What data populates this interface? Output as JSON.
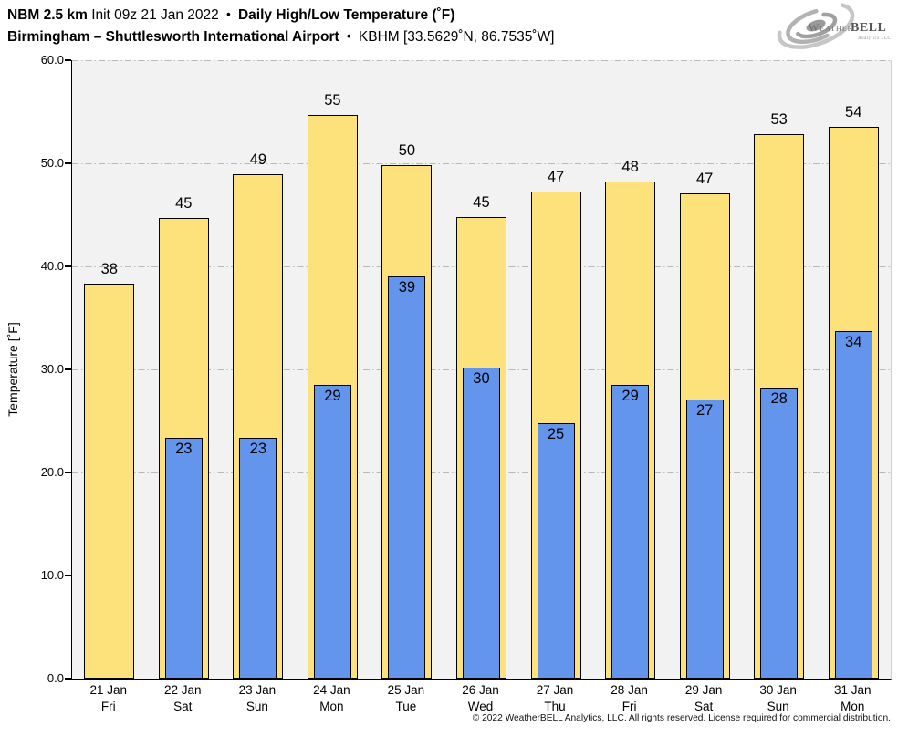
{
  "header": {
    "line1": {
      "model": "NBM 2.5 km",
      "init": "Init 09z 21 Jan 2022",
      "sep": "•",
      "product": "Daily High/Low Temperature (˚F)"
    },
    "line2": {
      "station": "Birmingham – Shuttlesworth International Airport",
      "sep": "•",
      "station_id": "KBHM [33.5629˚N, 86.7535˚W]"
    }
  },
  "logo": {
    "weather": "Weather",
    "bell": "BELL",
    "subtext": "Analytics LLC"
  },
  "footer": {
    "copyright": "© 2022 WeatherBELL Analytics, LLC. All rights reserved. License required for commercial distribution."
  },
  "chart_data": {
    "type": "bar",
    "title": "Daily High/Low Temperature (˚F)",
    "ylabel": "Temperature [˚F]",
    "ylim": [
      0,
      60
    ],
    "yticks": [
      0,
      10,
      20,
      30,
      40,
      50,
      60
    ],
    "ytick_labels": [
      "0.0",
      "10.0",
      "20.0",
      "30.0",
      "40.0",
      "50.0",
      "60.0"
    ],
    "grid": "horizontal dash-dot",
    "legend": "none",
    "categories": [
      {
        "date": "21 Jan",
        "day": "Fri"
      },
      {
        "date": "22 Jan",
        "day": "Sat"
      },
      {
        "date": "23 Jan",
        "day": "Sun"
      },
      {
        "date": "24 Jan",
        "day": "Mon"
      },
      {
        "date": "25 Jan",
        "day": "Tue"
      },
      {
        "date": "26 Jan",
        "day": "Wed"
      },
      {
        "date": "27 Jan",
        "day": "Thu"
      },
      {
        "date": "28 Jan",
        "day": "Fri"
      },
      {
        "date": "29 Jan",
        "day": "Sat"
      },
      {
        "date": "30 Jan",
        "day": "Sun"
      },
      {
        "date": "31 Jan",
        "day": "Mon"
      }
    ],
    "series": [
      {
        "name": "Daily High",
        "color": "#FDE17B",
        "labels": [
          38,
          45,
          49,
          55,
          50,
          45,
          47,
          48,
          47,
          53,
          54
        ],
        "values": [
          38.3,
          44.7,
          48.9,
          54.7,
          49.8,
          44.8,
          47.3,
          48.2,
          47.1,
          52.8,
          53.5
        ]
      },
      {
        "name": "Daily Low",
        "color": "#6495ED",
        "labels": [
          null,
          23,
          23,
          29,
          39,
          30,
          25,
          29,
          27,
          28,
          34
        ],
        "values": [
          null,
          23.4,
          23.4,
          28.5,
          39.0,
          30.2,
          24.8,
          28.5,
          27.1,
          28.2,
          33.7
        ]
      }
    ],
    "colors": {
      "plot_bg": "#f2f2f2",
      "grid": "#b9b9b9",
      "bar_border": "#000000",
      "text": "#000000"
    }
  }
}
